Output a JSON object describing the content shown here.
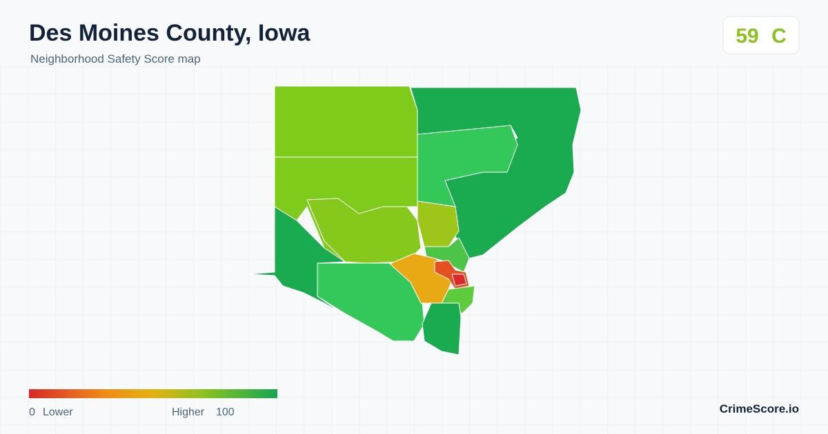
{
  "header": {
    "title": "Des Moines County, Iowa",
    "subtitle": "Neighborhood Safety Score map"
  },
  "score": {
    "value": "59",
    "grade": "C"
  },
  "legend": {
    "min": "0",
    "low_label": "Lower",
    "high_label": "Higher",
    "max": "100"
  },
  "brand": "CrimeScore.io"
}
